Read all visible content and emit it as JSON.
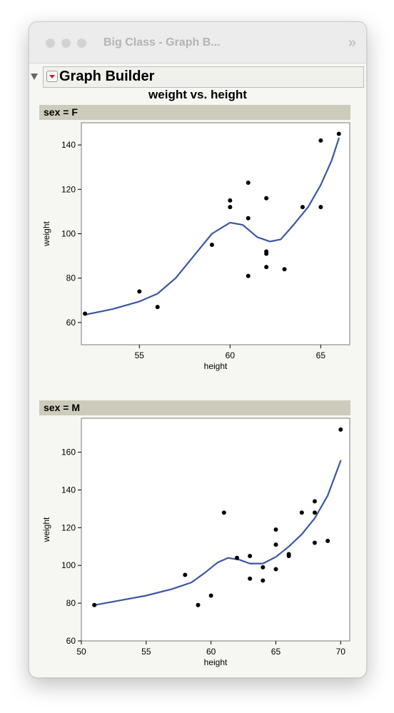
{
  "window": {
    "title": "Big Class - Graph B...",
    "expand_icon": "double-chevron-right-icon"
  },
  "outline": {
    "title": "Graph Builder",
    "menu_icon": "red-triangle-menu-icon",
    "disclosure_icon": "disclosure-triangle-icon"
  },
  "colors": {
    "smoother": "#3a57a3",
    "points": "#000000",
    "panel_header": "#cdcbbb"
  },
  "chart_data": [
    {
      "type": "scatter",
      "title": "weight vs. height",
      "panel_label": "sex = F",
      "xlabel": "height",
      "ylabel": "weight",
      "xlim": [
        51.8,
        66.6
      ],
      "ylim": [
        50,
        150
      ],
      "xticks": [
        55,
        60,
        65
      ],
      "yticks": [
        60,
        80,
        100,
        120,
        140
      ],
      "points": [
        {
          "x": 52,
          "y": 64
        },
        {
          "x": 55,
          "y": 74
        },
        {
          "x": 56,
          "y": 67
        },
        {
          "x": 59,
          "y": 95
        },
        {
          "x": 60,
          "y": 115
        },
        {
          "x": 60,
          "y": 112
        },
        {
          "x": 61,
          "y": 123
        },
        {
          "x": 61,
          "y": 107
        },
        {
          "x": 61,
          "y": 81
        },
        {
          "x": 62,
          "y": 116
        },
        {
          "x": 62,
          "y": 92
        },
        {
          "x": 62,
          "y": 91
        },
        {
          "x": 62,
          "y": 85
        },
        {
          "x": 63,
          "y": 84
        },
        {
          "x": 64,
          "y": 112
        },
        {
          "x": 65,
          "y": 142
        },
        {
          "x": 65,
          "y": 112
        },
        {
          "x": 66,
          "y": 145
        }
      ],
      "smoother": [
        {
          "x": 52,
          "y": 63.5
        },
        {
          "x": 53.5,
          "y": 66
        },
        {
          "x": 55,
          "y": 69.5
        },
        {
          "x": 56,
          "y": 73
        },
        {
          "x": 57,
          "y": 80
        },
        {
          "x": 58,
          "y": 90
        },
        {
          "x": 59,
          "y": 100
        },
        {
          "x": 60,
          "y": 105
        },
        {
          "x": 60.7,
          "y": 104
        },
        {
          "x": 61.5,
          "y": 98.5
        },
        {
          "x": 62.2,
          "y": 96.5
        },
        {
          "x": 62.8,
          "y": 97.5
        },
        {
          "x": 63.5,
          "y": 104
        },
        {
          "x": 64.3,
          "y": 112
        },
        {
          "x": 65,
          "y": 122
        },
        {
          "x": 65.6,
          "y": 133
        },
        {
          "x": 66,
          "y": 143
        }
      ]
    },
    {
      "type": "scatter",
      "panel_label": "sex = M",
      "xlabel": "height",
      "ylabel": "weight",
      "xlim": [
        50,
        70.7
      ],
      "ylim": [
        60,
        178
      ],
      "xticks": [
        50,
        55,
        60,
        65,
        70
      ],
      "yticks": [
        60,
        80,
        100,
        120,
        140,
        160
      ],
      "points": [
        {
          "x": 51,
          "y": 79
        },
        {
          "x": 58,
          "y": 95
        },
        {
          "x": 59,
          "y": 79
        },
        {
          "x": 60,
          "y": 84
        },
        {
          "x": 61,
          "y": 128
        },
        {
          "x": 62,
          "y": 104
        },
        {
          "x": 63,
          "y": 105
        },
        {
          "x": 63,
          "y": 93
        },
        {
          "x": 64,
          "y": 99
        },
        {
          "x": 64,
          "y": 92
        },
        {
          "x": 65,
          "y": 119
        },
        {
          "x": 65,
          "y": 111
        },
        {
          "x": 65,
          "y": 98
        },
        {
          "x": 66,
          "y": 106
        },
        {
          "x": 66,
          "y": 105
        },
        {
          "x": 67,
          "y": 128
        },
        {
          "x": 68,
          "y": 134
        },
        {
          "x": 68,
          "y": 128
        },
        {
          "x": 68,
          "y": 112
        },
        {
          "x": 69,
          "y": 113
        },
        {
          "x": 70,
          "y": 172
        }
      ],
      "smoother": [
        {
          "x": 51,
          "y": 79
        },
        {
          "x": 53,
          "y": 81.5
        },
        {
          "x": 55,
          "y": 84
        },
        {
          "x": 57,
          "y": 87.5
        },
        {
          "x": 58.5,
          "y": 91
        },
        {
          "x": 59.5,
          "y": 96
        },
        {
          "x": 60.5,
          "y": 101.5
        },
        {
          "x": 61.3,
          "y": 104
        },
        {
          "x": 62.2,
          "y": 103
        },
        {
          "x": 63,
          "y": 101
        },
        {
          "x": 64,
          "y": 101
        },
        {
          "x": 65,
          "y": 104.5
        },
        {
          "x": 66,
          "y": 110
        },
        {
          "x": 67,
          "y": 116.5
        },
        {
          "x": 68,
          "y": 125
        },
        {
          "x": 69,
          "y": 137
        },
        {
          "x": 70,
          "y": 155.5
        }
      ]
    }
  ]
}
